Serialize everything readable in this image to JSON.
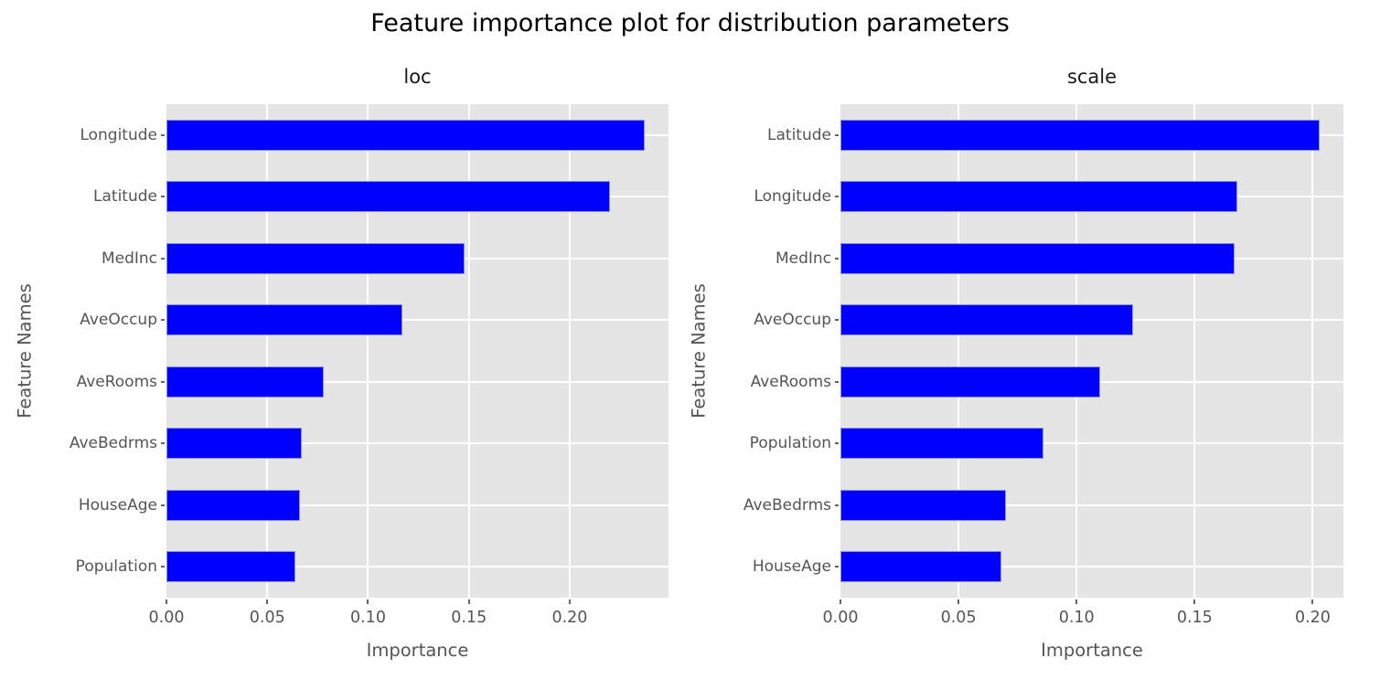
{
  "figure": {
    "title": "Feature importance plot for distribution parameters"
  },
  "style": {
    "bar_color": "#0000ff",
    "bar_edge_color": "#8f8fe0",
    "plot_background": "#e5e5e5",
    "grid_color": "#ffffff",
    "tick_text_color": "#555555",
    "title_color": "#000000"
  },
  "chart_data": [
    {
      "type": "bar",
      "orientation": "horizontal",
      "title": "loc",
      "xlabel": "Importance",
      "ylabel": "Feature Names",
      "categories": [
        "Longitude",
        "Latitude",
        "MedInc",
        "AveOccup",
        "AveRooms",
        "AveBedrms",
        "HouseAge",
        "Population"
      ],
      "values": [
        0.237,
        0.22,
        0.148,
        0.117,
        0.078,
        0.067,
        0.066,
        0.064
      ],
      "xlim": [
        0,
        0.249
      ],
      "xticks": [
        0.0,
        0.05,
        0.1,
        0.15,
        0.2
      ],
      "xtick_labels": [
        "0.00",
        "0.05",
        "0.10",
        "0.15",
        "0.20"
      ],
      "grid": true,
      "legend": false
    },
    {
      "type": "bar",
      "orientation": "horizontal",
      "title": "scale",
      "xlabel": "Importance",
      "ylabel": "Feature Names",
      "categories": [
        "Latitude",
        "Longitude",
        "MedInc",
        "AveOccup",
        "AveRooms",
        "Population",
        "AveBedrms",
        "HouseAge"
      ],
      "values": [
        0.203,
        0.168,
        0.167,
        0.124,
        0.11,
        0.086,
        0.07,
        0.068
      ],
      "xlim": [
        0,
        0.213
      ],
      "xticks": [
        0.0,
        0.05,
        0.1,
        0.15,
        0.2
      ],
      "xtick_labels": [
        "0.00",
        "0.05",
        "0.10",
        "0.15",
        "0.20"
      ],
      "grid": true,
      "legend": false
    }
  ]
}
